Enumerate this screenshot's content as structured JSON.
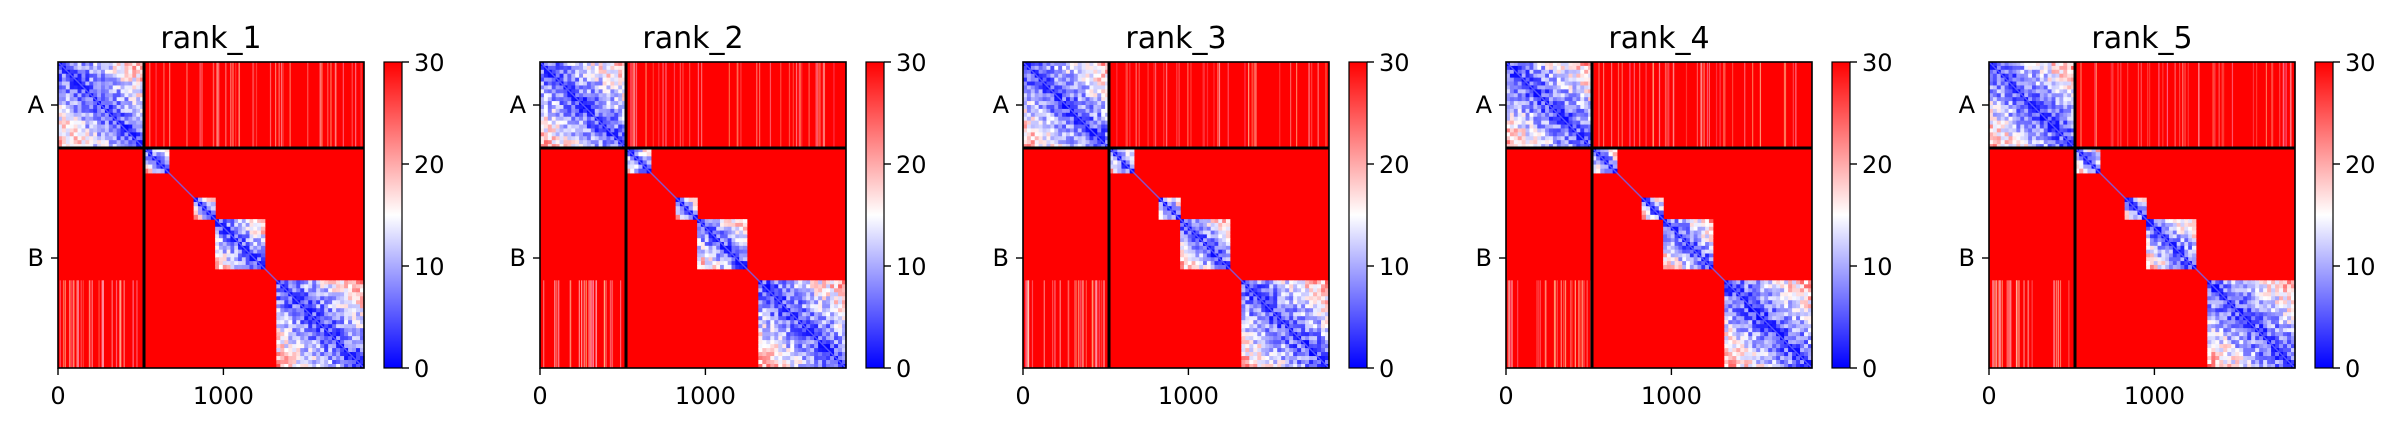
{
  "chart_data": [
    {
      "type": "heatmap",
      "title": "rank_1",
      "matrix_size": 1850,
      "x_ticks": [
        0,
        1000
      ],
      "y_tick_labels": [
        "A",
        "B"
      ],
      "groups": [
        {
          "label": "A",
          "start": 0,
          "end": 520
        },
        {
          "label": "B",
          "start": 520,
          "end": 1850
        }
      ],
      "sub_blocks": [
        [
          0,
          520
        ],
        [
          520,
          670
        ],
        [
          820,
          950
        ],
        [
          950,
          1250
        ],
        [
          1320,
          1850
        ]
      ],
      "colorbar": {
        "min": 0,
        "max": 30,
        "ticks": [
          0,
          10,
          20,
          30
        ],
        "colormap": "bwr"
      }
    },
    {
      "type": "heatmap",
      "title": "rank_2",
      "matrix_size": 1850,
      "x_ticks": [
        0,
        1000
      ],
      "y_tick_labels": [
        "A",
        "B"
      ],
      "groups": [
        {
          "label": "A",
          "start": 0,
          "end": 520
        },
        {
          "label": "B",
          "start": 520,
          "end": 1850
        }
      ],
      "sub_blocks": [
        [
          0,
          520
        ],
        [
          520,
          670
        ],
        [
          820,
          950
        ],
        [
          950,
          1250
        ],
        [
          1320,
          1850
        ]
      ],
      "colorbar": {
        "min": 0,
        "max": 30,
        "ticks": [
          0,
          10,
          20,
          30
        ],
        "colormap": "bwr"
      }
    },
    {
      "type": "heatmap",
      "title": "rank_3",
      "matrix_size": 1850,
      "x_ticks": [
        0,
        1000
      ],
      "y_tick_labels": [
        "A",
        "B"
      ],
      "groups": [
        {
          "label": "A",
          "start": 0,
          "end": 520
        },
        {
          "label": "B",
          "start": 520,
          "end": 1850
        }
      ],
      "sub_blocks": [
        [
          0,
          520
        ],
        [
          520,
          670
        ],
        [
          820,
          950
        ],
        [
          950,
          1250
        ],
        [
          1320,
          1850
        ]
      ],
      "colorbar": {
        "min": 0,
        "max": 30,
        "ticks": [
          0,
          10,
          20,
          30
        ],
        "colormap": "bwr"
      }
    },
    {
      "type": "heatmap",
      "title": "rank_4",
      "matrix_size": 1850,
      "x_ticks": [
        0,
        1000
      ],
      "y_tick_labels": [
        "A",
        "B"
      ],
      "groups": [
        {
          "label": "A",
          "start": 0,
          "end": 520
        },
        {
          "label": "B",
          "start": 520,
          "end": 1850
        }
      ],
      "sub_blocks": [
        [
          0,
          520
        ],
        [
          520,
          670
        ],
        [
          820,
          950
        ],
        [
          950,
          1250
        ],
        [
          1320,
          1850
        ]
      ],
      "colorbar": {
        "min": 0,
        "max": 30,
        "ticks": [
          0,
          10,
          20,
          30
        ],
        "colormap": "bwr"
      }
    },
    {
      "type": "heatmap",
      "title": "rank_5",
      "matrix_size": 1850,
      "x_ticks": [
        0,
        1000
      ],
      "y_tick_labels": [
        "A",
        "B"
      ],
      "groups": [
        {
          "label": "A",
          "start": 0,
          "end": 520
        },
        {
          "label": "B",
          "start": 520,
          "end": 1850
        }
      ],
      "sub_blocks": [
        [
          0,
          520
        ],
        [
          520,
          670
        ],
        [
          820,
          950
        ],
        [
          950,
          1250
        ],
        [
          1320,
          1850
        ]
      ],
      "colorbar": {
        "min": 0,
        "max": 30,
        "ticks": [
          0,
          10,
          20,
          30
        ],
        "colormap": "bwr"
      }
    }
  ],
  "colors": {
    "high": "#ff0000",
    "mid": "#ffffff",
    "low": "#0000ff",
    "divider": "#000000"
  }
}
